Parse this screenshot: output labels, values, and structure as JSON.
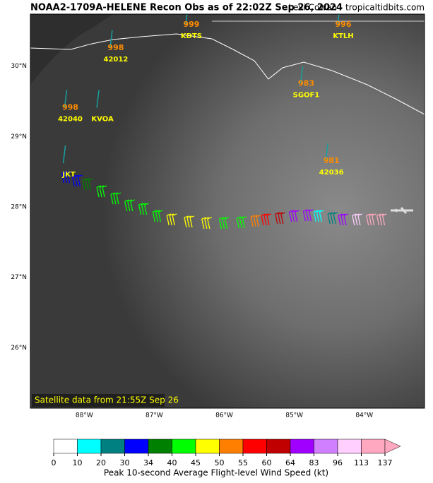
{
  "title": "NOAA2-1709A-HELENE Recon Obs as of 22:02Z Sep 26, 2024",
  "credit": "Levi Cowan - tropicaltidbits.com",
  "satellite_note": "Satellite data from 21:55Z Sep 26",
  "map": {
    "lonlim": [
      -88.77,
      -83.14
    ],
    "latlim": [
      25.14,
      30.74
    ],
    "lonticks": [
      {
        "value": -88,
        "label": "88°W"
      },
      {
        "value": -87,
        "label": "87°W"
      },
      {
        "value": -86,
        "label": "86°W"
      },
      {
        "value": -85,
        "label": "85°W"
      },
      {
        "value": -84,
        "label": "84°W"
      }
    ],
    "latticks": [
      {
        "value": 26,
        "label": "26°N"
      },
      {
        "value": 27,
        "label": "27°N"
      },
      {
        "value": 28,
        "label": "28°N"
      },
      {
        "value": 29,
        "label": "29°N"
      },
      {
        "value": 30,
        "label": "30°N"
      }
    ]
  },
  "stations": [
    {
      "name": "KDTS",
      "pressure": "999",
      "lon": -86.47,
      "lat": 30.39
    },
    {
      "name": "42012",
      "pressure": "998",
      "lon": -87.55,
      "lat": 30.06
    },
    {
      "name": "42040",
      "pressure": "998",
      "lon": -88.2,
      "lat": 29.21
    },
    {
      "name": "KVOA",
      "pressure": null,
      "lon": -87.74,
      "lat": 29.21
    },
    {
      "name": "KTLH",
      "pressure": "996",
      "lon": -84.3,
      "lat": 30.39
    },
    {
      "name": "SGOF1",
      "pressure": "983",
      "lon": -84.83,
      "lat": 29.55
    },
    {
      "name": "42036",
      "pressure": "981",
      "lon": -84.47,
      "lat": 28.45
    },
    {
      "name": "JKT",
      "pressure": null,
      "lon": -88.22,
      "lat": 28.42
    }
  ],
  "observations": {
    "lon": [
      -88.25,
      -88.1,
      -87.95,
      -87.75,
      -87.55,
      -87.35,
      -87.15,
      -86.95,
      -86.75,
      -86.5,
      -86.25,
      -86.0,
      -85.75,
      -85.55,
      -85.4,
      -85.2,
      -85.0,
      -84.8,
      -84.65,
      -84.45,
      -84.3,
      -84.1,
      -83.9,
      -83.75
    ],
    "lat": [
      28.4,
      28.35,
      28.3,
      28.2,
      28.1,
      28.0,
      27.95,
      27.85,
      27.8,
      27.77,
      27.75,
      27.75,
      27.76,
      27.78,
      27.8,
      27.82,
      27.85,
      27.86,
      27.85,
      27.82,
      27.8,
      27.8,
      27.8,
      27.8
    ],
    "wind_kt": [
      32,
      33,
      38,
      42,
      42,
      43,
      43,
      44,
      46,
      47,
      48,
      44,
      44,
      52,
      58,
      62,
      70,
      75,
      16,
      20,
      80,
      110,
      115,
      115
    ]
  },
  "colorbar": {
    "label": "Peak 10-second Average Flight-level Wind Speed (kt)",
    "ticks": [
      0,
      10,
      20,
      30,
      34,
      40,
      45,
      50,
      55,
      60,
      64,
      83,
      96,
      113,
      137
    ],
    "colors": [
      "#ffffff",
      "#00ffff",
      "#008080",
      "#0000ff",
      "#008000",
      "#00ff00",
      "#ffff00",
      "#ff8000",
      "#ff0000",
      "#c00000",
      "#a000ff",
      "#d080ff",
      "#ffd0ff",
      "#ffa8c0"
    ]
  }
}
